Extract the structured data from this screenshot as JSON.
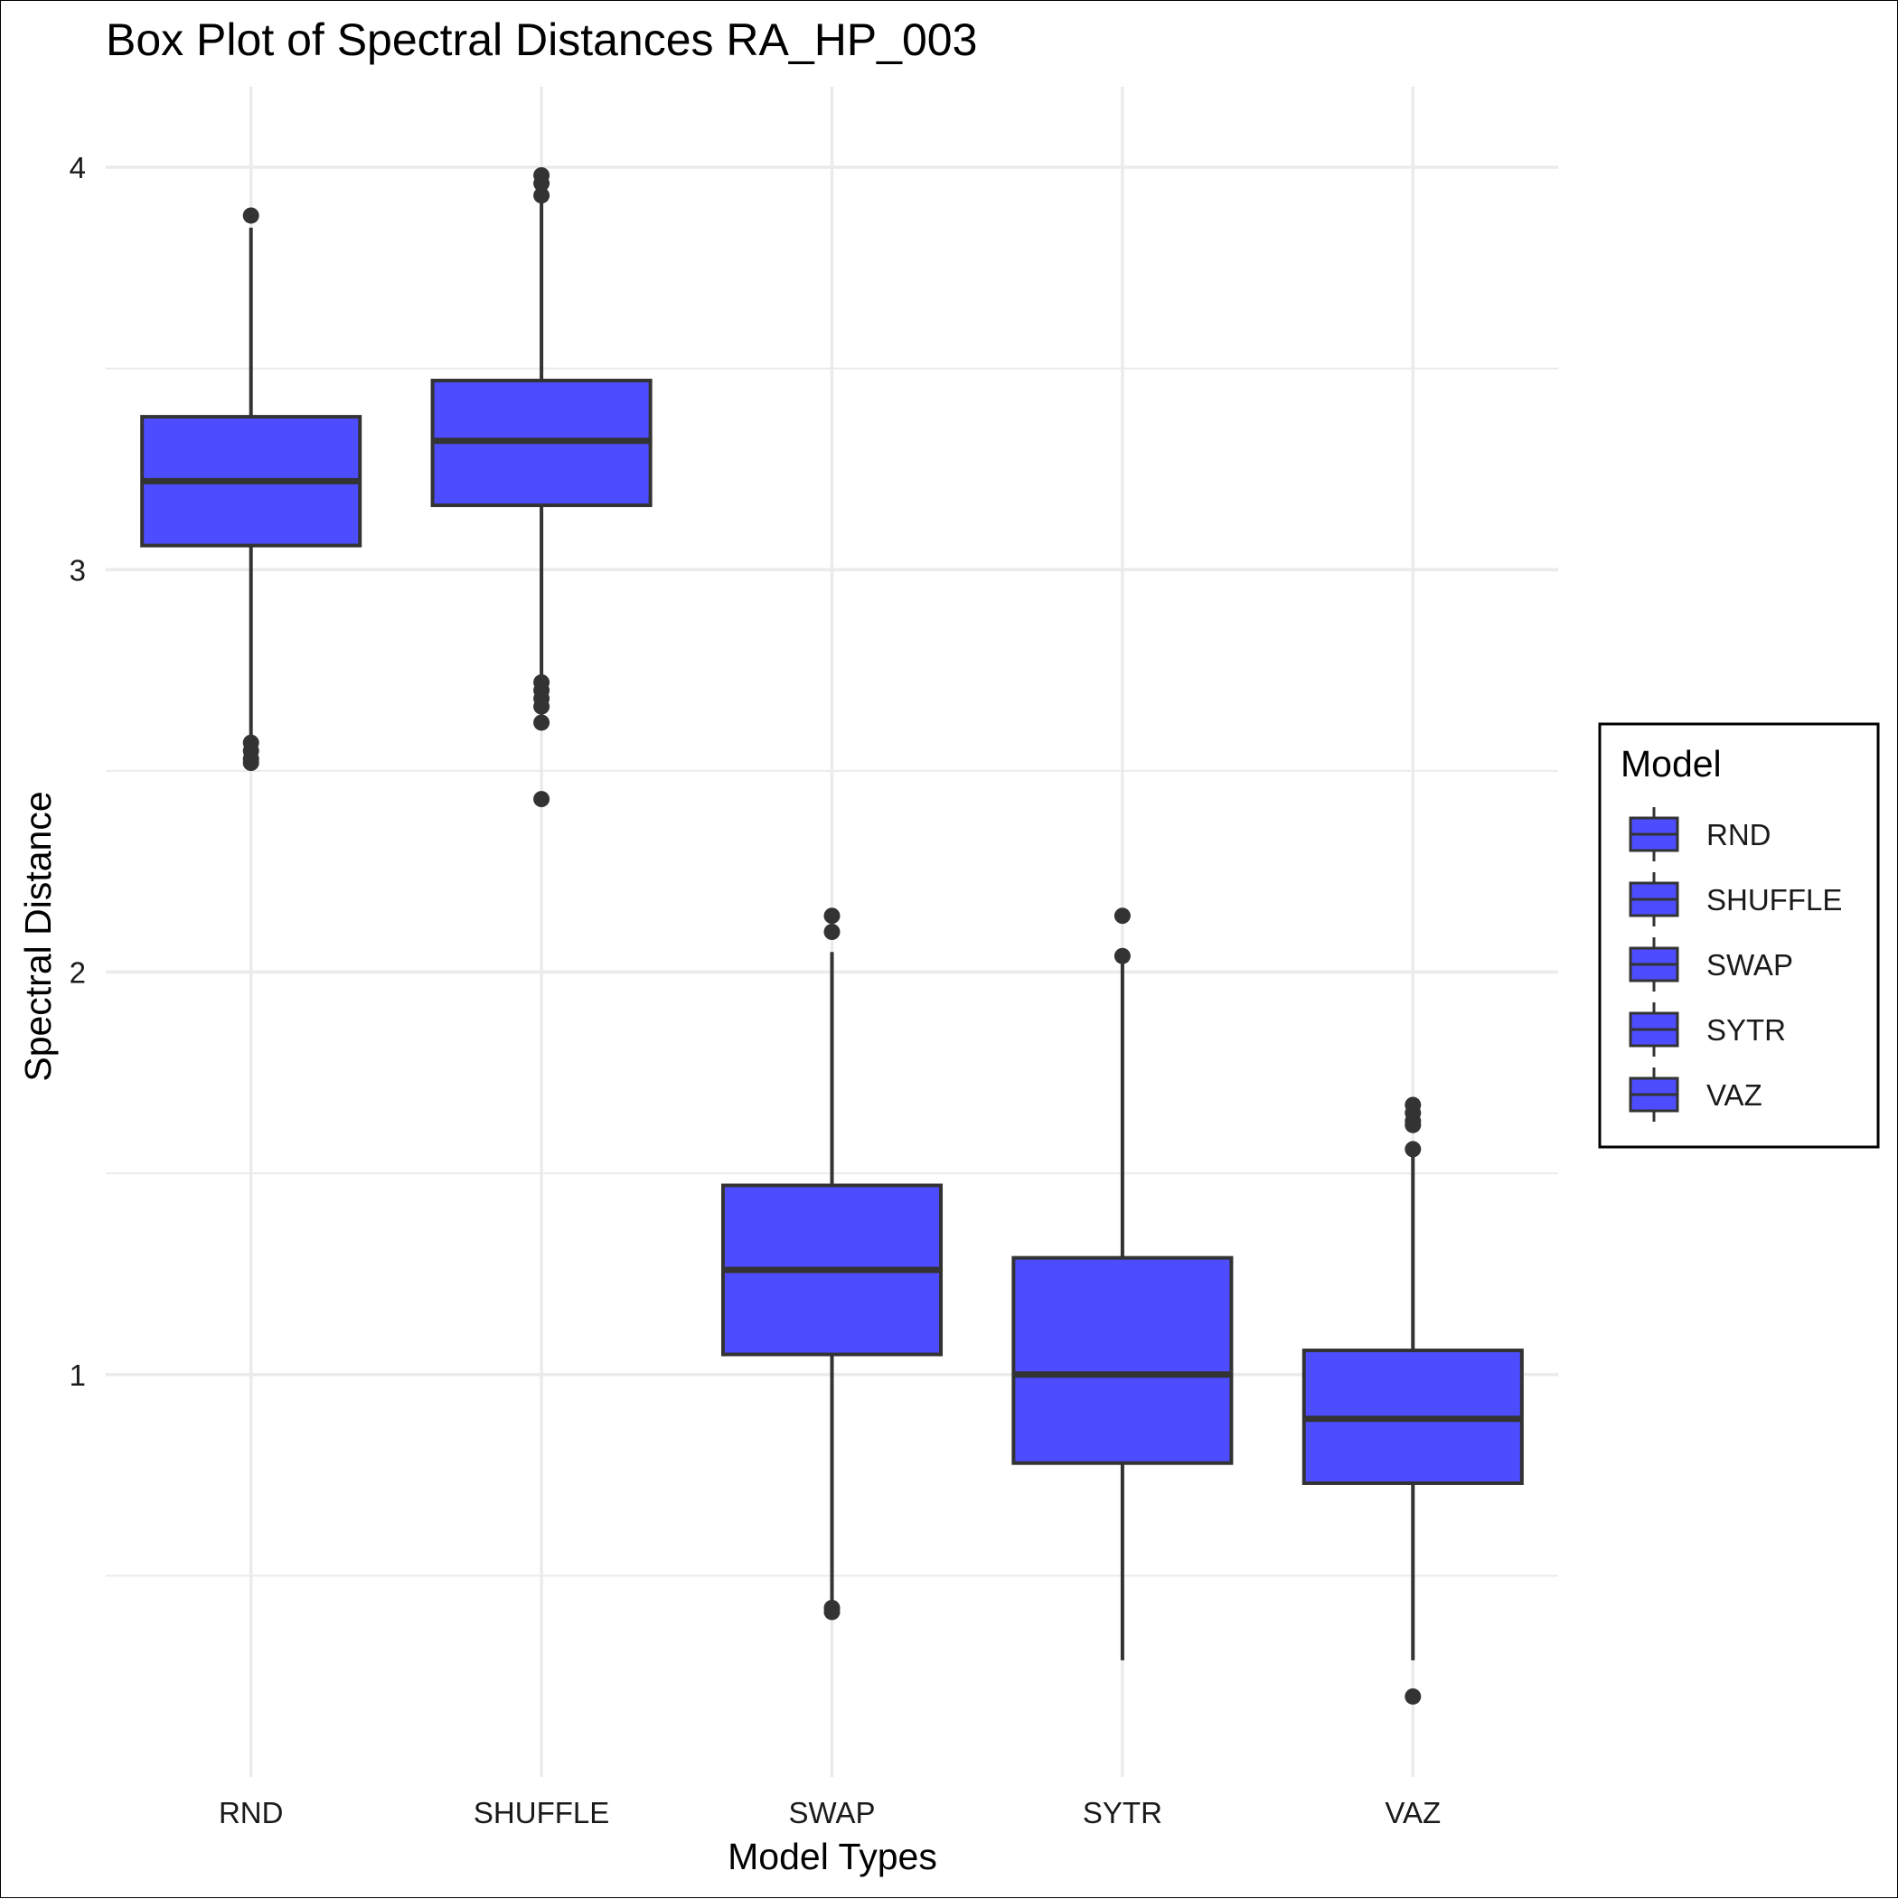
{
  "chart_data": {
    "type": "box",
    "title": "Box Plot of Spectral Distances RA_HP_003",
    "xlabel": "Model Types",
    "ylabel": "Spectral Distance",
    "ylim": [
      0.0,
      4.2
    ],
    "yticks": [
      1,
      2,
      3,
      4
    ],
    "yticks_minor": [
      0.5,
      1.5,
      2.5,
      3.5
    ],
    "grid": true,
    "categories": [
      "RND",
      "SHUFFLE",
      "SWAP",
      "SYTR",
      "VAZ"
    ],
    "boxes": [
      {
        "category": "RND",
        "q1": 3.06,
        "median": 3.22,
        "q3": 3.38,
        "whisker_low": 2.57,
        "whisker_high": 3.85,
        "outliers": [
          3.88,
          2.57,
          2.55,
          2.53,
          2.52
        ]
      },
      {
        "category": "SHUFFLE",
        "q1": 3.16,
        "median": 3.32,
        "q3": 3.47,
        "whisker_low": 2.72,
        "whisker_high": 3.92,
        "outliers": [
          3.98,
          3.96,
          3.93,
          2.72,
          2.7,
          2.68,
          2.66,
          2.62,
          2.43
        ]
      },
      {
        "category": "SWAP",
        "q1": 1.05,
        "median": 1.26,
        "q3": 1.47,
        "whisker_low": 0.41,
        "whisker_high": 2.05,
        "outliers": [
          2.14,
          2.1,
          0.42,
          0.41
        ]
      },
      {
        "category": "SYTR",
        "q1": 0.78,
        "median": 1.0,
        "q3": 1.29,
        "whisker_low": 0.29,
        "whisker_high": 2.04,
        "outliers": [
          2.14,
          2.04
        ]
      },
      {
        "category": "VAZ",
        "q1": 0.73,
        "median": 0.89,
        "q3": 1.06,
        "whisker_low": 0.29,
        "whisker_high": 1.57,
        "outliers": [
          1.67,
          1.65,
          1.63,
          1.62,
          1.56,
          0.2
        ]
      }
    ],
    "fill_color": "#4d4dff",
    "line_color": "#333333",
    "grid_color": "#ebebeb",
    "legend": {
      "title": "Model",
      "position": "right",
      "entries": [
        "RND",
        "SHUFFLE",
        "SWAP",
        "SYTR",
        "VAZ"
      ]
    }
  }
}
